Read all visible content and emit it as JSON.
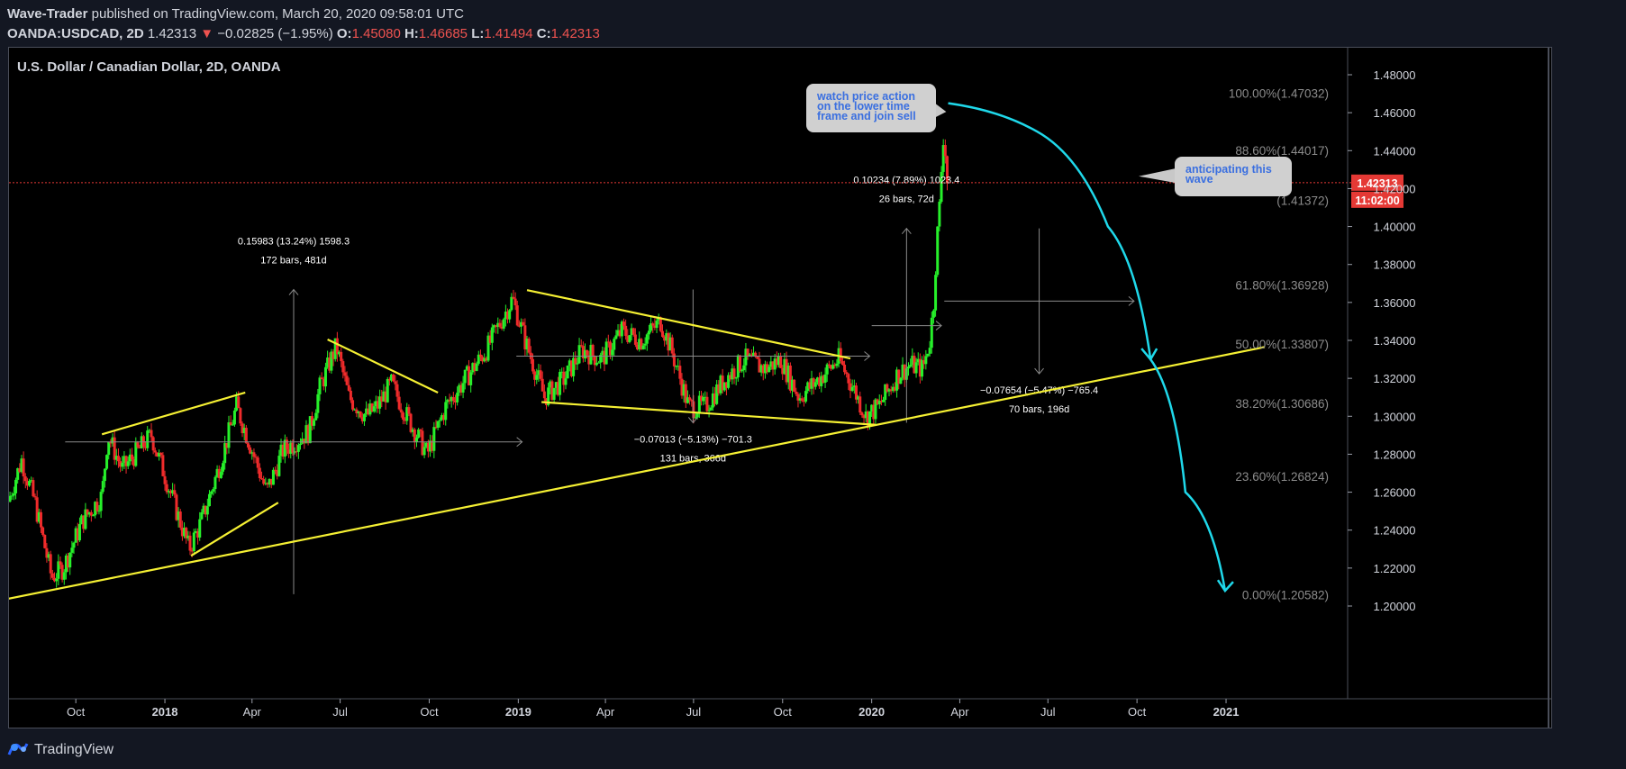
{
  "header": {
    "author": "Wave-Trader",
    "published_text": "published on TradingView.com, March 20, 2020 09:58:01 UTC",
    "symbol": "OANDA:USDCAD, 2D",
    "last_price": "1.42313",
    "change_arrow": "▼",
    "change": "−0.02825 (−1.95%)",
    "o_label": "O:",
    "o_value": "1.45080",
    "h_label": "H:",
    "h_value": "1.46685",
    "l_label": "L:",
    "l_value": "1.41494",
    "c_label": "C:",
    "c_value": "1.42313"
  },
  "footer": {
    "brand": "TradingView"
  },
  "colors": {
    "up": "#26f02a",
    "down": "#ef2b2b",
    "trendline": "#f5f033",
    "forecast": "#1fd8ea",
    "price_line": "#e53935",
    "measure": "#8a8a8a"
  },
  "icons": {
    "logo": "tradingview-logo-icon",
    "change": "down-arrow-icon"
  },
  "chart_data": {
    "type": "candlestick",
    "title": "U.S. Dollar / Canadian Dollar, 2D, OANDA",
    "ylim": [
      1.2,
      1.48
    ],
    "y_ticks": [
      "1.48000",
      "1.46000",
      "1.44000",
      "1.42000",
      "1.40000",
      "1.38000",
      "1.36000",
      "1.34000",
      "1.32000",
      "1.30000",
      "1.28000",
      "1.26000",
      "1.24000",
      "1.22000",
      "1.20000"
    ],
    "x_ticks": [
      "Oct",
      "2018",
      "Apr",
      "Jul",
      "Oct",
      "2019",
      "Apr",
      "Jul",
      "Oct",
      "2020",
      "Apr",
      "Jul",
      "Oct",
      "2021"
    ],
    "x_domain": [
      "2017-07-24",
      "2021-05-01"
    ],
    "x_tick_dates": [
      "2017-10-01",
      "2018-01-01",
      "2018-04-01",
      "2018-07-01",
      "2018-10-01",
      "2019-01-01",
      "2019-04-01",
      "2019-07-01",
      "2019-10-01",
      "2020-01-01",
      "2020-04-01",
      "2020-07-01",
      "2020-10-01",
      "2021-01-01"
    ],
    "price_path": [
      [
        "2017-07-25",
        1.255
      ],
      [
        "2017-08-08",
        1.277
      ],
      [
        "2017-08-22",
        1.254
      ],
      [
        "2017-09-08",
        1.215
      ],
      [
        "2017-09-20",
        1.22
      ],
      [
        "2017-10-10",
        1.245
      ],
      [
        "2017-10-30",
        1.258
      ],
      [
        "2017-11-05",
        1.29
      ],
      [
        "2017-11-20",
        1.272
      ],
      [
        "2017-12-20",
        1.29
      ],
      [
        "2018-01-10",
        1.258
      ],
      [
        "2018-01-28",
        1.23
      ],
      [
        "2018-02-10",
        1.245
      ],
      [
        "2018-03-01",
        1.275
      ],
      [
        "2018-03-18",
        1.305
      ],
      [
        "2018-04-01",
        1.285
      ],
      [
        "2018-04-18",
        1.26
      ],
      [
        "2018-05-05",
        1.282
      ],
      [
        "2018-06-01",
        1.292
      ],
      [
        "2018-06-12",
        1.315
      ],
      [
        "2018-06-29",
        1.337
      ],
      [
        "2018-07-12",
        1.31
      ],
      [
        "2018-07-30",
        1.3
      ],
      [
        "2018-08-10",
        1.305
      ],
      [
        "2018-08-25",
        1.317
      ],
      [
        "2018-09-10",
        1.3
      ],
      [
        "2018-10-01",
        1.28
      ],
      [
        "2018-10-20",
        1.305
      ],
      [
        "2018-11-10",
        1.32
      ],
      [
        "2018-12-01",
        1.335
      ],
      [
        "2018-12-28",
        1.362
      ],
      [
        "2019-01-10",
        1.34
      ],
      [
        "2019-01-30",
        1.31
      ],
      [
        "2019-02-20",
        1.32
      ],
      [
        "2019-03-10",
        1.335
      ],
      [
        "2019-03-30",
        1.33
      ],
      [
        "2019-04-20",
        1.345
      ],
      [
        "2019-05-10",
        1.34
      ],
      [
        "2019-05-30",
        1.35
      ],
      [
        "2019-06-10",
        1.335
      ],
      [
        "2019-06-28",
        1.305
      ],
      [
        "2019-07-15",
        1.305
      ],
      [
        "2019-08-05",
        1.32
      ],
      [
        "2019-08-25",
        1.33
      ],
      [
        "2019-09-15",
        1.325
      ],
      [
        "2019-10-01",
        1.33
      ],
      [
        "2019-10-20",
        1.31
      ],
      [
        "2019-11-10",
        1.32
      ],
      [
        "2019-11-30",
        1.33
      ],
      [
        "2019-12-15",
        1.315
      ],
      [
        "2019-12-28",
        1.3
      ],
      [
        "2020-01-10",
        1.305
      ],
      [
        "2020-01-30",
        1.322
      ],
      [
        "2020-02-12",
        1.327
      ],
      [
        "2020-02-25",
        1.325
      ],
      [
        "2020-03-03",
        1.34
      ],
      [
        "2020-03-07",
        1.36
      ],
      [
        "2020-03-10",
        1.39
      ],
      [
        "2020-03-13",
        1.41
      ],
      [
        "2020-03-16",
        1.44
      ],
      [
        "2020-03-18",
        1.455
      ],
      [
        "2020-03-20",
        1.423
      ]
    ],
    "last_price": "1.42313",
    "countdown": "11:02:00",
    "fib_levels": [
      {
        "label": "100.00%(1.47032)",
        "value": 1.47032
      },
      {
        "label": "88.60%(1.44017)",
        "value": 1.44017
      },
      {
        "label": "(1.41372)",
        "value": 1.41372
      },
      {
        "label": "61.80%(1.36928)",
        "value": 1.36928
      },
      {
        "label": "50.00%(1.33807)",
        "value": 1.33807
      },
      {
        "label": "38.20%(1.30686)",
        "value": 1.30686
      },
      {
        "label": "23.60%(1.26824)",
        "value": 1.26824
      },
      {
        "label": "0.00%(1.20582)",
        "value": 1.20582
      }
    ],
    "measurements": [
      {
        "line1": "0.15983 (13.24%) 1598.3",
        "line2": "172 bars, 481d",
        "start": "2017-09-20",
        "end": "2019-01-05",
        "y_from": 1.2062,
        "y_to": 1.3668,
        "direction": "up"
      },
      {
        "line1": "−0.07013 (−5.13%) −701.3",
        "line2": "131 bars, 366d",
        "start": "2018-12-30",
        "end": "2019-12-30",
        "y_from": 1.3668,
        "y_to": 1.2966,
        "direction": "down"
      },
      {
        "line1": "0.10234 (7.89%) 1023.4",
        "line2": "26 bars, 72d",
        "start": "2020-01-01",
        "end": "2020-03-13",
        "y_from": 1.2966,
        "y_to": 1.399,
        "direction": "up"
      },
      {
        "line1": "−0.07654 (−5.47%) −765.4",
        "line2": "70 bars, 196d",
        "start": "2020-03-16",
        "end": "2020-09-28",
        "y_from": 1.399,
        "y_to": 1.3224,
        "direction": "down"
      }
    ],
    "trendlines": [
      [
        [
          "2017-07-20",
          1.2035
        ],
        [
          "2021-02-10",
          1.3365
        ]
      ],
      [
        [
          "2017-10-28",
          1.2905
        ],
        [
          "2018-03-25",
          1.3125
        ]
      ],
      [
        [
          "2018-01-28",
          1.2265
        ],
        [
          "2018-04-28",
          1.2545
        ]
      ],
      [
        [
          "2018-06-18",
          1.3405
        ],
        [
          "2018-10-10",
          1.3125
        ]
      ],
      [
        [
          "2019-01-10",
          1.3665
        ],
        [
          "2019-12-10",
          1.3305
        ]
      ],
      [
        [
          "2019-01-25",
          1.3075
        ],
        [
          "2020-01-05",
          1.2955
        ]
      ]
    ],
    "forecast_path": [
      [
        "2020-03-20",
        1.465
      ],
      [
        "2020-06-20",
        1.45
      ],
      [
        "2020-09-01",
        1.4
      ],
      [
        "2020-10-15",
        1.33
      ],
      [
        "2020-11-20",
        1.26
      ],
      [
        "2020-12-31",
        1.208
      ]
    ],
    "callouts": [
      {
        "name": "callout-watch-price",
        "lines": [
          "watch price action",
          "on the lower time",
          "frame and join sell"
        ]
      },
      {
        "name": "callout-anticipating",
        "lines": [
          "anticipating this",
          "wave"
        ]
      }
    ]
  }
}
